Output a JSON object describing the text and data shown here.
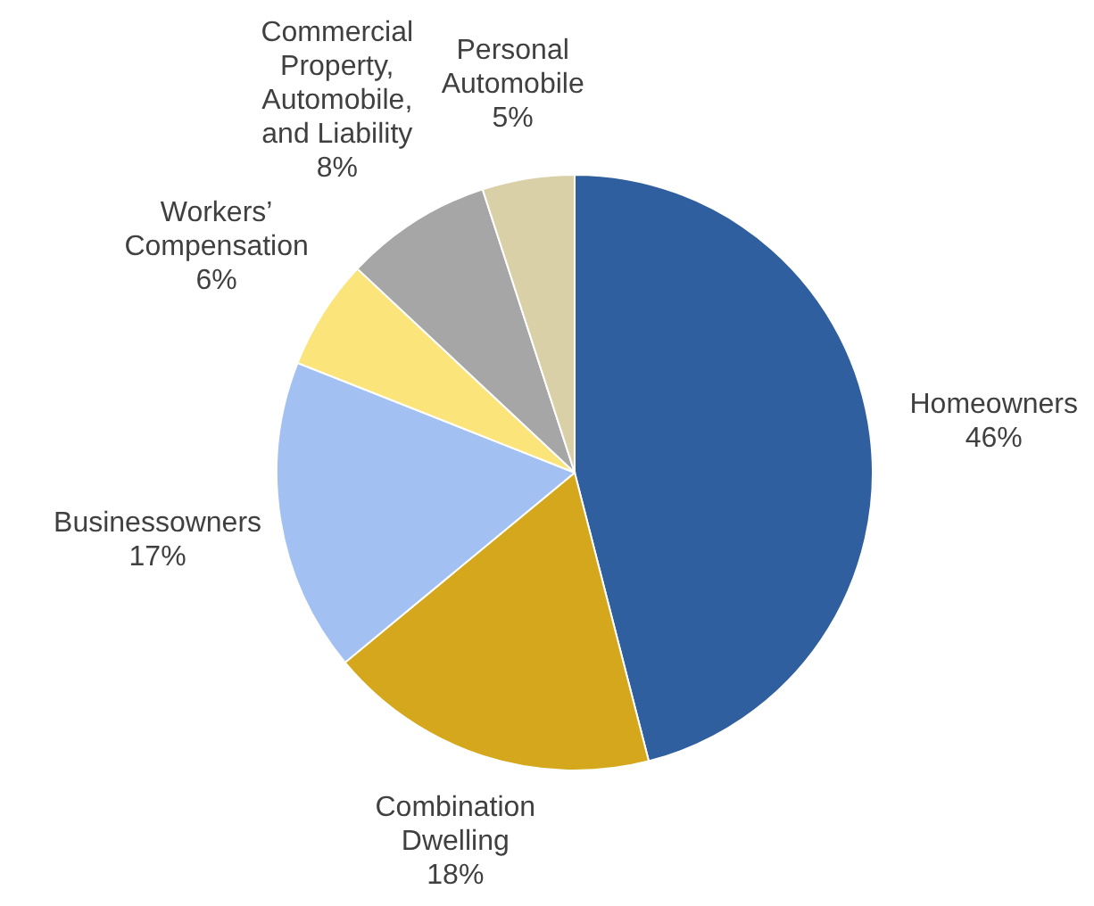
{
  "chart_data": {
    "type": "pie",
    "categories": [
      "Homeowners",
      "Combination Dwelling",
      "Businessowners",
      "Workers’ Compensation",
      "Commercial Property, Automobile, and Liability",
      "Personal Automobile"
    ],
    "values": [
      46,
      18,
      17,
      6,
      8,
      5
    ],
    "value_labels": [
      "46%",
      "18%",
      "17%",
      "6%",
      "8%",
      "5%"
    ],
    "colors": [
      "#2f5f9e",
      "#d4a71c",
      "#a3c0f2",
      "#fbe47a",
      "#a6a6a6",
      "#d9d0a8"
    ]
  }
}
